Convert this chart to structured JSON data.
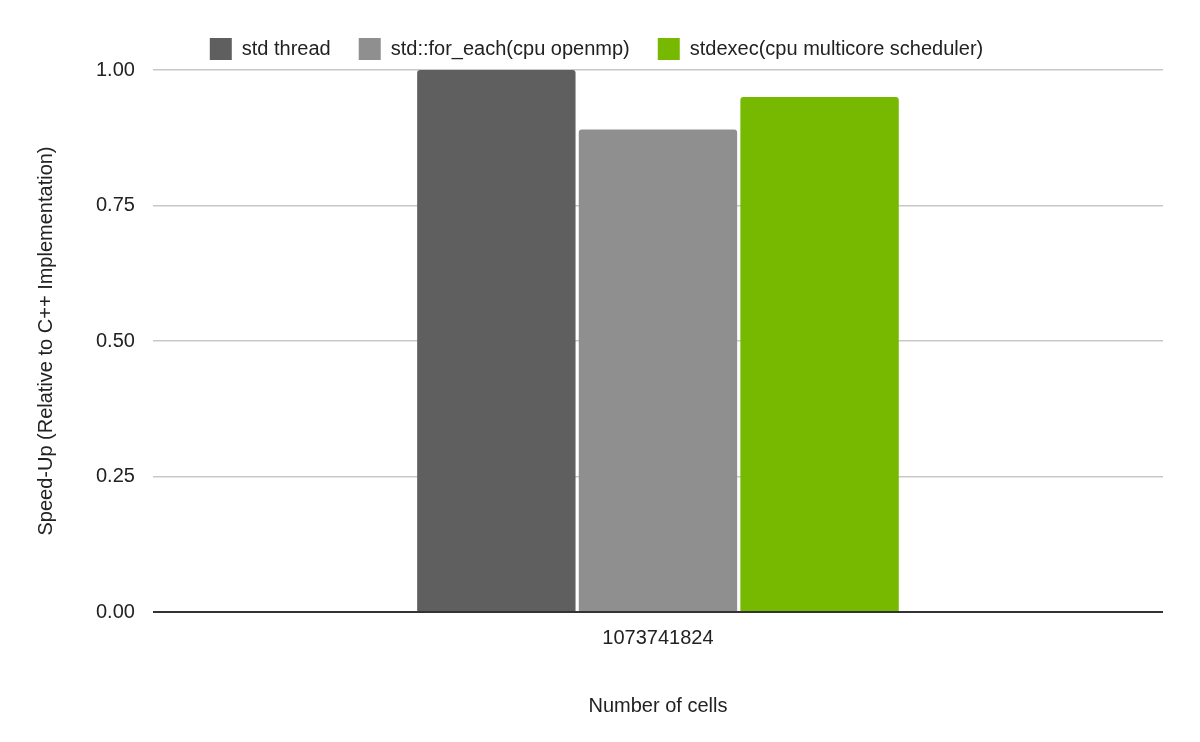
{
  "chart_data": {
    "type": "bar",
    "xlabel": "Number of cells",
    "ylabel": "Speed-Up (Relative to C++ Implementation)",
    "categories": [
      "1073741824"
    ],
    "series": [
      {
        "name": "std thread",
        "color": "#5f5f5f",
        "values": [
          1.0
        ]
      },
      {
        "name": "std::for_each(cpu openmp)",
        "color": "#8f8f8f",
        "values": [
          0.89
        ]
      },
      {
        "name": "stdexec(cpu multicore scheduler)",
        "color": "#76b900",
        "values": [
          0.95
        ]
      }
    ],
    "ylim": [
      0,
      1
    ],
    "yticks": [
      {
        "value": 0,
        "label": "0.00"
      },
      {
        "value": 0.25,
        "label": "0.25"
      },
      {
        "value": 0.5,
        "label": "0.50"
      },
      {
        "value": 0.75,
        "label": "0.75"
      },
      {
        "value": 1,
        "label": "1.00"
      }
    ],
    "grid": "y",
    "legend": "top"
  }
}
